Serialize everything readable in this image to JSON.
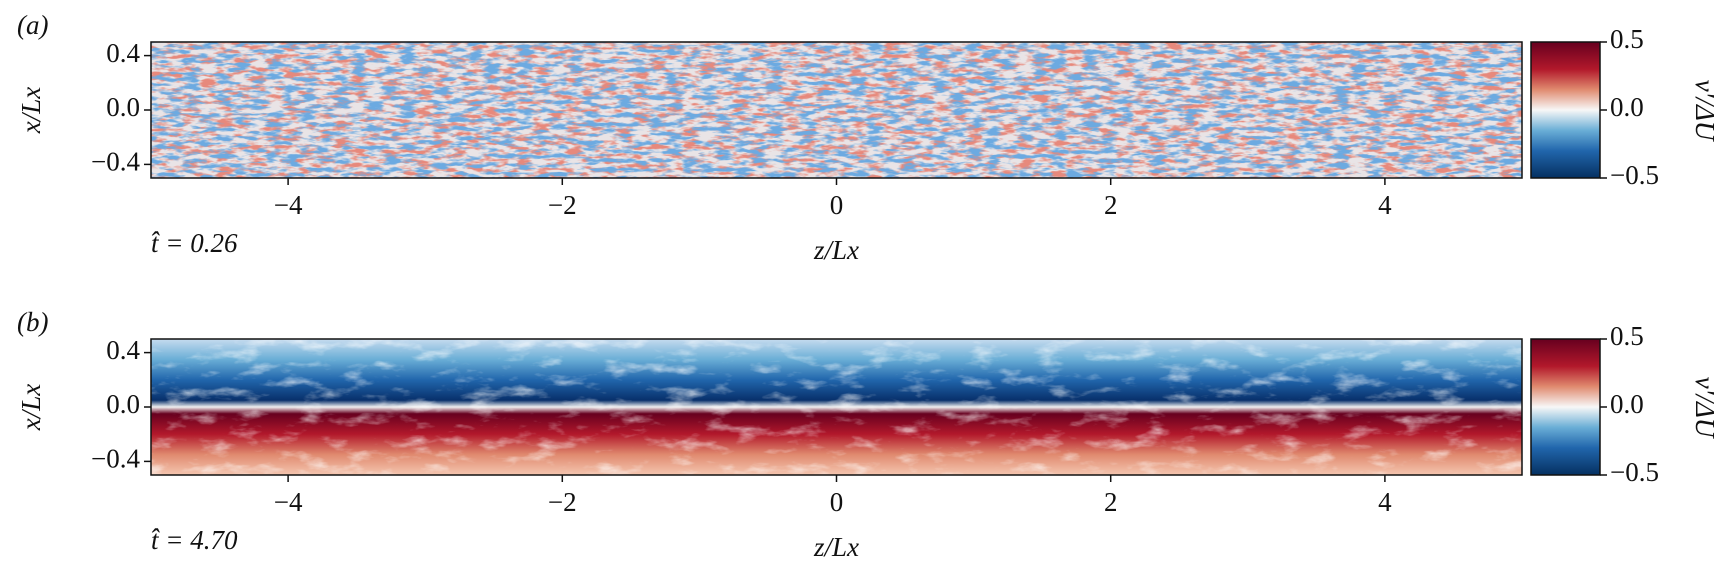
{
  "chart_data": [
    {
      "type": "heatmap",
      "panel_label": "(a)",
      "annotation": "t̂ = 0.26",
      "xlabel": "z/Lx",
      "ylabel": "x/Lx",
      "xlim": [
        -5,
        5
      ],
      "xticks": [
        {
          "value": -4,
          "label": "−4"
        },
        {
          "value": -2,
          "label": "−2"
        },
        0,
        2,
        4
      ],
      "ylim": [
        -0.5,
        0.5
      ],
      "yticks": [
        {
          "value": -0.4,
          "label": "−0.4"
        },
        {
          "value": 0,
          "label": "0.0"
        },
        0.4
      ],
      "colorbar": {
        "label": "v′/ΔU",
        "lim": [
          -0.5,
          0.5
        ],
        "ticks": [
          {
            "value": -0.5,
            "label": "−0.5"
          },
          {
            "value": 0,
            "label": "0.0"
          },
          0.5
        ]
      }
    },
    {
      "type": "heatmap",
      "panel_label": "(b)",
      "annotation": "t̂ = 4.70",
      "xlabel": "z/Lx",
      "ylabel": "x/Lx",
      "xlim": [
        -5,
        5
      ],
      "xticks": [
        {
          "value": -4,
          "label": "−4"
        },
        {
          "value": -2,
          "label": "−2"
        },
        0,
        2,
        4
      ],
      "ylim": [
        -0.5,
        0.5
      ],
      "yticks": [
        {
          "value": -0.4,
          "label": "−0.4"
        },
        {
          "value": 0,
          "label": "0.0"
        },
        0.4
      ],
      "colorbar": {
        "label": "v′/ΔU",
        "lim": [
          -0.5,
          0.5
        ],
        "ticks": [
          {
            "value": -0.5,
            "label": "−0.5"
          },
          {
            "value": 0,
            "label": "0.0"
          },
          0.5
        ]
      }
    }
  ]
}
